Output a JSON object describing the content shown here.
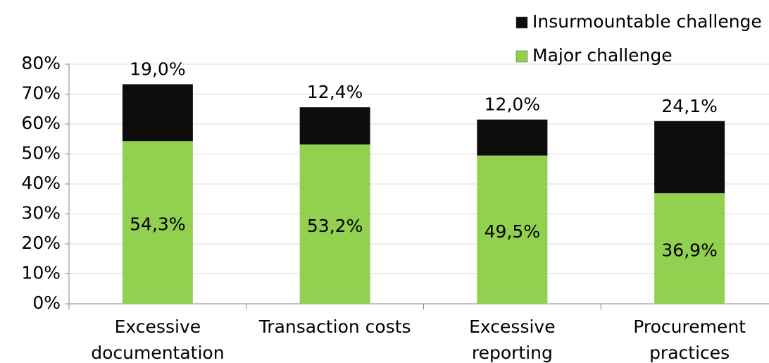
{
  "chart_data": {
    "type": "stacked_bar",
    "categories": [
      [
        "Excessive",
        "documentation"
      ],
      [
        "Transaction costs"
      ],
      [
        "Excessive",
        "reporting"
      ],
      [
        "Procurement",
        "practices"
      ]
    ],
    "series": [
      {
        "name": "Major challenge",
        "color": "#92d050",
        "values": [
          54.3,
          53.2,
          49.5,
          36.9
        ],
        "value_labels": [
          "54,3%",
          "53,2%",
          "49,5%",
          "36,9%"
        ]
      },
      {
        "name": "Insurmountable challenge",
        "color": "#0d0d0d",
        "values": [
          19.0,
          12.4,
          12.0,
          24.1
        ],
        "value_labels": [
          "19,0%",
          "12,4%",
          "12,0%",
          "24,1%"
        ]
      }
    ],
    "ylim": [
      0,
      80
    ],
    "yticks": [
      {
        "value": 0,
        "label": "0%"
      },
      {
        "value": 10,
        "label": "10%"
      },
      {
        "value": 20,
        "label": "20%"
      },
      {
        "value": 30,
        "label": "30%"
      },
      {
        "value": 40,
        "label": "40%"
      },
      {
        "value": 50,
        "label": "50%"
      },
      {
        "value": 60,
        "label": "60%"
      },
      {
        "value": 70,
        "label": "70%"
      },
      {
        "value": 80,
        "label": "80%"
      }
    ],
    "grid": true
  }
}
